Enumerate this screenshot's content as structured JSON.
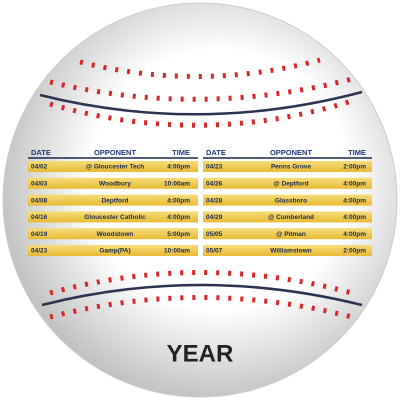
{
  "tables": [
    {
      "headers": [
        "DATE",
        "OPPONENT",
        "TIME"
      ],
      "rows": [
        [
          "04/02",
          "@ Gloucester Tech",
          "4:00pm"
        ],
        [
          "04/03",
          "Woodbury",
          "10:00am"
        ],
        [
          "04/08",
          "Deptford",
          "4:00pm"
        ],
        [
          "04/16",
          "Gloucester Catholic",
          "4:00pm"
        ],
        [
          "04/19",
          "Woodstown",
          "5:00pm"
        ],
        [
          "04/23",
          "Gamp(PA)",
          "10:00am"
        ]
      ]
    },
    {
      "headers": [
        "DATE",
        "OPPONENT",
        "TIME"
      ],
      "rows": [
        [
          "04/23",
          "Penns Grove",
          "2:00pm"
        ],
        [
          "04/26",
          "@ Deptford",
          "4:00pm"
        ],
        [
          "04/28",
          "Glassboro",
          "4:00pm"
        ],
        [
          "04/29",
          "@ Cumberland",
          "4:00pm"
        ],
        [
          "05/05",
          "@ Pitman",
          "4:00pm"
        ],
        [
          "05/07",
          "Williamstown",
          "2:00pm"
        ]
      ]
    }
  ],
  "footer": {
    "year": "YEAR"
  }
}
